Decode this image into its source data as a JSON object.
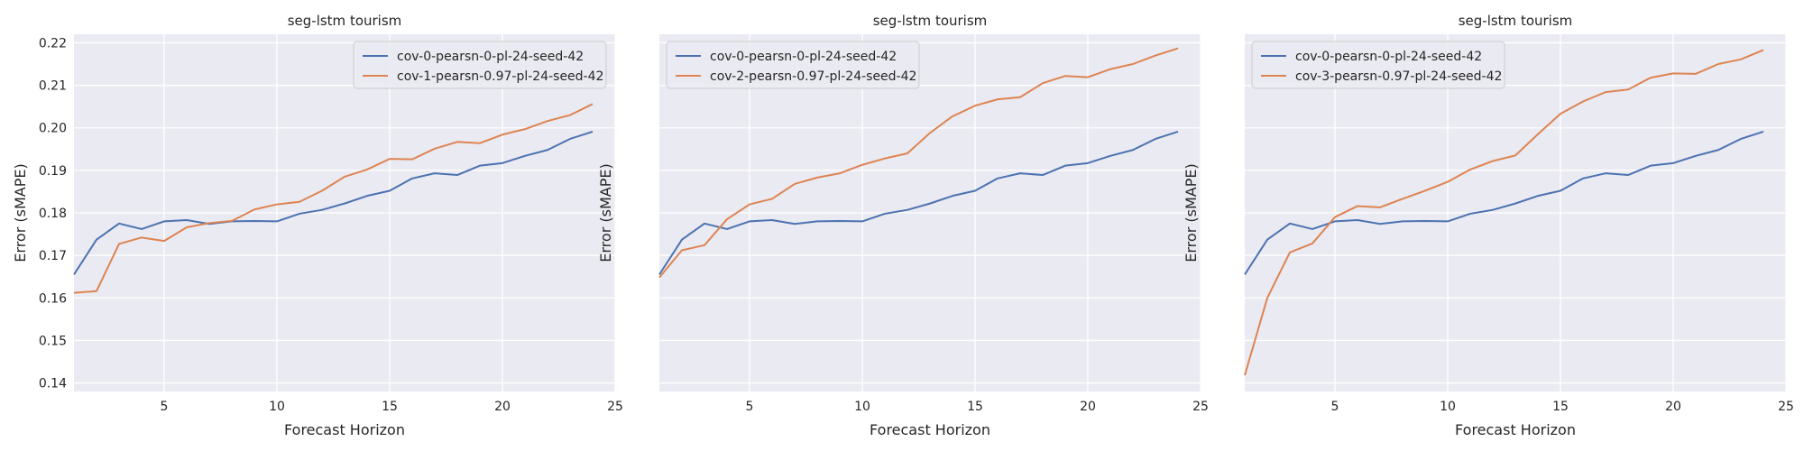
{
  "figure": {
    "background": "#ffffff",
    "panel_background": "#eaeaf2",
    "grid_color": "#ffffff"
  },
  "chart_data": [
    {
      "type": "line",
      "title": "seg-lstm tourism",
      "xlabel": "Forecast Horizon",
      "ylabel": "Error (sMAPE)",
      "xlim": [
        1,
        25
      ],
      "ylim": [
        0.138,
        0.222
      ],
      "xticks": [
        "5",
        "10",
        "15",
        "20",
        "25"
      ],
      "yticks": [
        "0.14",
        "0.15",
        "0.16",
        "0.17",
        "0.18",
        "0.19",
        "0.20",
        "0.21",
        "0.22"
      ],
      "show_yticks": true,
      "grid": true,
      "legend_position": "top-right",
      "x": [
        1,
        2,
        3,
        4,
        5,
        6,
        7,
        8,
        9,
        10,
        11,
        12,
        13,
        14,
        15,
        16,
        17,
        18,
        19,
        20,
        21,
        22,
        23,
        24
      ],
      "series": [
        {
          "name": "cov-0-pearsn-0-pl-24-seed-42",
          "color": "#4c72b0",
          "values": [
            0.1655,
            0.1737,
            0.1775,
            0.1762,
            0.178,
            0.1783,
            0.1774,
            0.178,
            0.1781,
            0.178,
            0.1798,
            0.1807,
            0.1822,
            0.184,
            0.1852,
            0.1881,
            0.1893,
            0.1889,
            0.1911,
            0.1917,
            0.1934,
            0.1948,
            0.1974,
            0.1991
          ]
        },
        {
          "name": "cov-1-pearsn-0.97-pl-24-seed-42",
          "color": "#dd8452",
          "values": [
            0.1612,
            0.1616,
            0.1727,
            0.1742,
            0.1734,
            0.1766,
            0.1776,
            0.1781,
            0.1808,
            0.182,
            0.1826,
            0.1852,
            0.1885,
            0.1902,
            0.1927,
            0.1926,
            0.1951,
            0.1967,
            0.1964,
            0.1984,
            0.1997,
            0.2016,
            0.203,
            0.2056
          ]
        }
      ]
    },
    {
      "type": "line",
      "title": "seg-lstm tourism",
      "xlabel": "Forecast Horizon",
      "ylabel": "Error (sMAPE)",
      "xlim": [
        1,
        25
      ],
      "ylim": [
        0.138,
        0.222
      ],
      "xticks": [
        "5",
        "10",
        "15",
        "20",
        "25"
      ],
      "yticks": [
        "0.14",
        "0.15",
        "0.16",
        "0.17",
        "0.18",
        "0.19",
        "0.20",
        "0.21",
        "0.22"
      ],
      "show_yticks": false,
      "grid": true,
      "legend_position": "top-left",
      "x": [
        1,
        2,
        3,
        4,
        5,
        6,
        7,
        8,
        9,
        10,
        11,
        12,
        13,
        14,
        15,
        16,
        17,
        18,
        19,
        20,
        21,
        22,
        23,
        24
      ],
      "series": [
        {
          "name": "cov-0-pearsn-0-pl-24-seed-42",
          "color": "#4c72b0",
          "values": [
            0.1655,
            0.1737,
            0.1775,
            0.1762,
            0.178,
            0.1783,
            0.1774,
            0.178,
            0.1781,
            0.178,
            0.1798,
            0.1807,
            0.1822,
            0.184,
            0.1852,
            0.1881,
            0.1893,
            0.1889,
            0.1911,
            0.1917,
            0.1934,
            0.1948,
            0.1974,
            0.1991
          ]
        },
        {
          "name": "cov-2-pearsn-0.97-pl-24-seed-42",
          "color": "#dd8452",
          "values": [
            0.1648,
            0.1712,
            0.1724,
            0.1785,
            0.182,
            0.1833,
            0.1868,
            0.1883,
            0.1893,
            0.1913,
            0.1928,
            0.194,
            0.1988,
            0.2027,
            0.2052,
            0.2067,
            0.2072,
            0.2105,
            0.2122,
            0.2119,
            0.2138,
            0.215,
            0.217,
            0.2187
          ]
        }
      ]
    },
    {
      "type": "line",
      "title": "seg-lstm tourism",
      "xlabel": "Forecast Horizon",
      "ylabel": "Error (sMAPE)",
      "xlim": [
        1,
        25
      ],
      "ylim": [
        0.138,
        0.222
      ],
      "xticks": [
        "5",
        "10",
        "15",
        "20",
        "25"
      ],
      "yticks": [
        "0.14",
        "0.15",
        "0.16",
        "0.17",
        "0.18",
        "0.19",
        "0.20",
        "0.21",
        "0.22"
      ],
      "show_yticks": false,
      "grid": true,
      "legend_position": "top-left",
      "x": [
        1,
        2,
        3,
        4,
        5,
        6,
        7,
        8,
        9,
        10,
        11,
        12,
        13,
        14,
        15,
        16,
        17,
        18,
        19,
        20,
        21,
        22,
        23,
        24
      ],
      "series": [
        {
          "name": "cov-0-pearsn-0-pl-24-seed-42",
          "color": "#4c72b0",
          "values": [
            0.1655,
            0.1737,
            0.1775,
            0.1762,
            0.178,
            0.1783,
            0.1774,
            0.178,
            0.1781,
            0.178,
            0.1798,
            0.1807,
            0.1822,
            0.184,
            0.1852,
            0.1881,
            0.1893,
            0.1889,
            0.1911,
            0.1917,
            0.1934,
            0.1948,
            0.1974,
            0.1991
          ]
        },
        {
          "name": "cov-3-pearsn-0.97-pl-24-seed-42",
          "color": "#dd8452",
          "values": [
            0.1418,
            0.16,
            0.1707,
            0.1728,
            0.179,
            0.1816,
            0.1813,
            0.1833,
            0.1852,
            0.1873,
            0.1902,
            0.1922,
            0.1935,
            0.1985,
            0.2033,
            0.2062,
            0.2084,
            0.209,
            0.2118,
            0.2128,
            0.2127,
            0.215,
            0.2161,
            0.2183
          ]
        }
      ]
    }
  ]
}
